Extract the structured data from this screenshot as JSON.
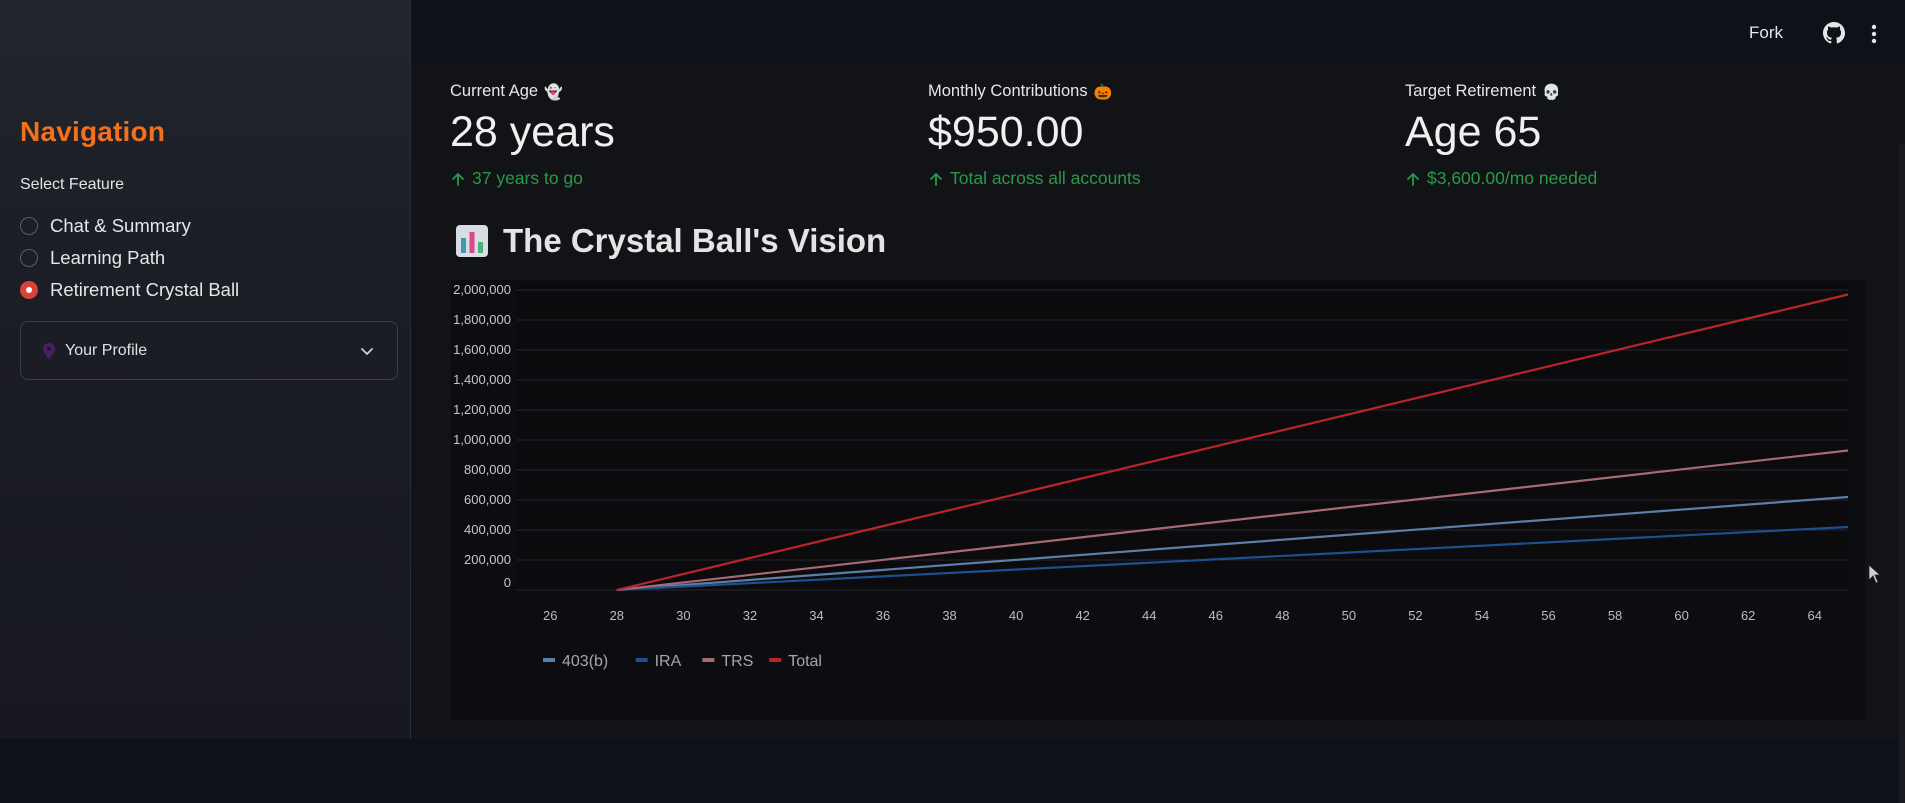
{
  "sidebar": {
    "title": "Navigation",
    "select_label": "Select Feature",
    "options": [
      {
        "label": "Chat & Summary",
        "selected": false
      },
      {
        "label": "Learning Path",
        "selected": false
      },
      {
        "label": "Retirement Crystal Ball",
        "selected": true
      }
    ],
    "expander": {
      "label": "Your Profile",
      "icon": "pin-icon"
    }
  },
  "header": {
    "fork_label": "Fork",
    "icons": [
      "github-icon",
      "more-vert-icon"
    ]
  },
  "metrics": [
    {
      "label": "Current Age",
      "emoji": "👻",
      "value": "28 years",
      "delta": "37 years to go"
    },
    {
      "label": "Monthly Contributions",
      "emoji": "🎃",
      "value": "$950.00",
      "delta": "Total across all accounts"
    },
    {
      "label": "Target Retirement",
      "emoji": "💀",
      "value": "Age 65",
      "delta": "$3,600.00/mo needed"
    }
  ],
  "colors": {
    "accent_orange": "#f2711c",
    "delta_green": "#2a9a48",
    "radio_red": "#d9413a"
  },
  "chart_section": {
    "title": "The Crystal Ball's Vision",
    "icon": "bar-chart-icon"
  },
  "chart_data": {
    "type": "line",
    "x": [
      28,
      65
    ],
    "xticks": [
      26,
      28,
      30,
      32,
      34,
      36,
      38,
      40,
      42,
      44,
      46,
      48,
      50,
      52,
      54,
      56,
      58,
      60,
      62,
      64
    ],
    "yticks": [
      "0",
      "200,000",
      "400,000",
      "600,000",
      "800,000",
      "1,000,000",
      "1,200,000",
      "1,400,000",
      "1,600,000",
      "1,800,000",
      "2,000,000"
    ],
    "xlim": [
      25,
      65
    ],
    "ylim": [
      0,
      2000000
    ],
    "grid": true,
    "legend_position": "bottom-left",
    "series": [
      {
        "name": "403(b)",
        "color": "#5b7fa6",
        "values": [
          0,
          620000
        ]
      },
      {
        "name": "IRA",
        "color": "#1e4f8f",
        "values": [
          0,
          420000
        ]
      },
      {
        "name": "TRS",
        "color": "#a86a72",
        "values": [
          0,
          930000
        ]
      },
      {
        "name": "Total",
        "color": "#b8252a",
        "values": [
          0,
          1970000
        ]
      }
    ]
  }
}
